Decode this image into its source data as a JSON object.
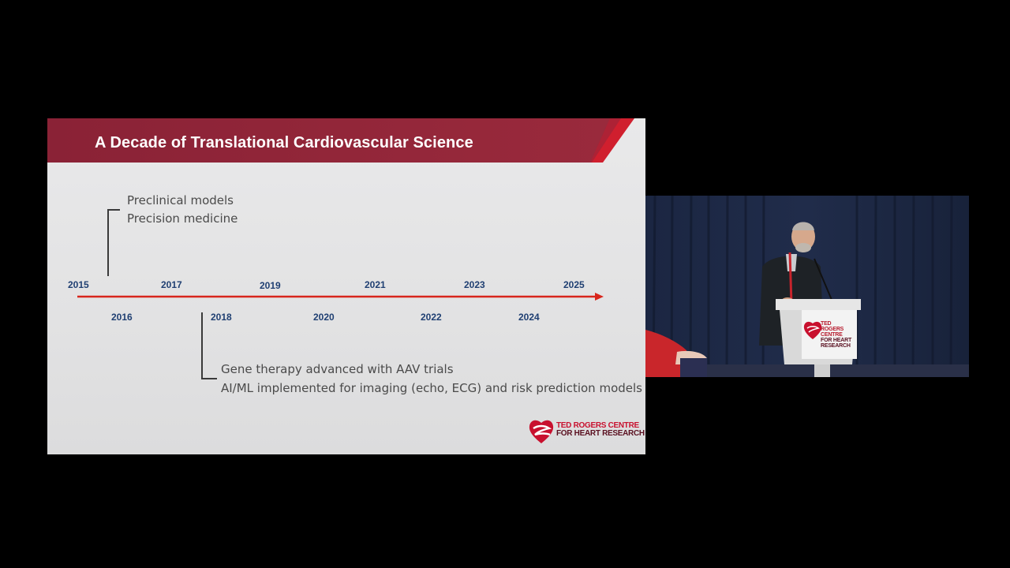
{
  "slide": {
    "title": "A Decade of Translational Cardiovascular Science",
    "top_years": [
      "2015",
      "2017",
      "2019",
      "2021",
      "2023",
      "2025"
    ],
    "bottom_years": [
      "2016",
      "2018",
      "2020",
      "2022",
      "2024"
    ],
    "upper_notes": [
      "Preclinical models",
      "Precision medicine"
    ],
    "lower_notes": [
      "Gene therapy advanced with AAV trials",
      "AI/ML implemented for imaging (echo, ECG) and risk prediction models"
    ],
    "brand": {
      "line1": "TED ROGERS CENTRE",
      "line2": "FOR HEART RESEARCH"
    },
    "colors": {
      "title_band": "#8e2437",
      "timeline_arrow": "#d8261c",
      "year_text": "#1f3f72",
      "accent_red": "#c8102e"
    }
  },
  "camera": {
    "podium_sign": [
      "TED ROGERS",
      "CENTRE",
      "FOR HEART",
      "RESEARCH"
    ],
    "icons": [
      "heart-logo-icon",
      "microphone-icon"
    ]
  }
}
